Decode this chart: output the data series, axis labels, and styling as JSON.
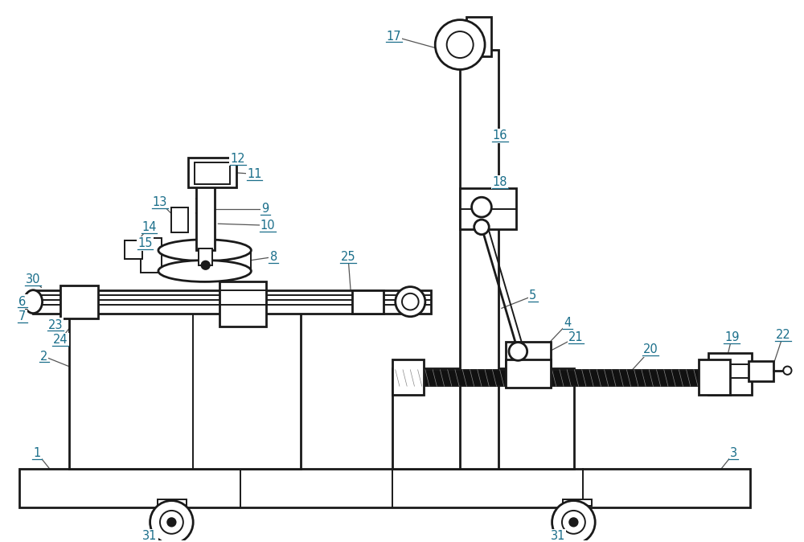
{
  "bg": "#ffffff",
  "lc": "#1a1a1a",
  "tc": "#1a6e8a",
  "lw": 1.4,
  "lw2": 2.0,
  "figsize": [
    10.0,
    6.74
  ],
  "dpi": 100
}
